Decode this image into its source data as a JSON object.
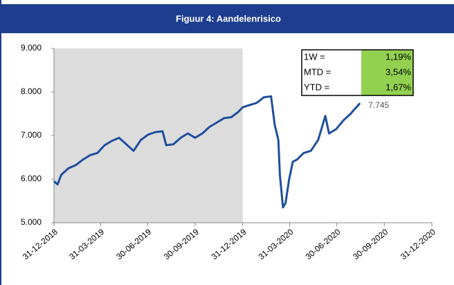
{
  "chart_data": {
    "type": "line",
    "title": "Figuur 4: Aandelenrisico",
    "color": "#1f4e9c",
    "shade_color": "#dcdcdc",
    "shade": [
      "31-12-2018",
      "31-12-2019"
    ],
    "x": [
      "31-12-2018",
      "07-01-2019",
      "14-01-2019",
      "28-01-2019",
      "11-02-2019",
      "25-02-2019",
      "11-03-2019",
      "25-03-2019",
      "08-04-2019",
      "22-04-2019",
      "06-05-2019",
      "20-05-2019",
      "03-06-2019",
      "17-06-2019",
      "01-07-2019",
      "15-07-2019",
      "29-07-2019",
      "05-08-2019",
      "19-08-2019",
      "02-09-2019",
      "16-09-2019",
      "30-09-2019",
      "14-10-2019",
      "28-10-2019",
      "11-11-2019",
      "25-11-2019",
      "09-12-2019",
      "23-12-2019",
      "31-12-2019",
      "13-01-2020",
      "27-01-2020",
      "10-02-2020",
      "24-02-2020",
      "02-03-2020",
      "09-03-2020",
      "12-03-2020",
      "16-03-2020",
      "18-03-2020",
      "23-03-2020",
      "30-03-2020",
      "06-04-2020",
      "14-04-2020",
      "27-04-2020",
      "11-05-2020",
      "25-05-2020",
      "08-06-2020",
      "15-06-2020",
      "29-06-2020",
      "13-07-2020",
      "27-07-2020",
      "03-08-2020",
      "07-08-2020",
      "14-08-2020"
    ],
    "values": [
      5950,
      5880,
      6100,
      6250,
      6320,
      6450,
      6550,
      6600,
      6780,
      6880,
      6950,
      6800,
      6650,
      6900,
      7020,
      7080,
      7100,
      6780,
      6800,
      6950,
      7050,
      6950,
      7050,
      7200,
      7300,
      7400,
      7420,
      7550,
      7650,
      7700,
      7750,
      7880,
      7900,
      7250,
      6900,
      6100,
      5600,
      5350,
      5450,
      6000,
      6400,
      6450,
      6600,
      6650,
      6900,
      7450,
      7050,
      7150,
      7350,
      7500,
      7600,
      7650,
      7745
    ],
    "xlim": [
      "31-12-2018",
      "31-12-2020"
    ],
    "xticks": [
      "31-12-2018",
      "31-03-2019",
      "30-06-2019",
      "30-09-2019",
      "31-12-2019",
      "31-03-2020",
      "30-06-2020",
      "30-09-2020",
      "31-12-2020"
    ],
    "ylim": [
      5000,
      9000
    ],
    "yticks": [
      {
        "value": 5000,
        "label": "5.000"
      },
      {
        "value": 6000,
        "label": "6.000"
      },
      {
        "value": 7000,
        "label": "7.000"
      },
      {
        "value": 8000,
        "label": "8.000"
      },
      {
        "value": 9000,
        "label": "9.000"
      }
    ],
    "end_label": {
      "value": 7745,
      "label": "7.745"
    },
    "table": {
      "rows": [
        [
          "1W =",
          "1,19%"
        ],
        [
          "MTD =",
          "3,54%"
        ],
        [
          "YTD =",
          "1,67%"
        ]
      ],
      "value_color": "#92d050"
    }
  }
}
